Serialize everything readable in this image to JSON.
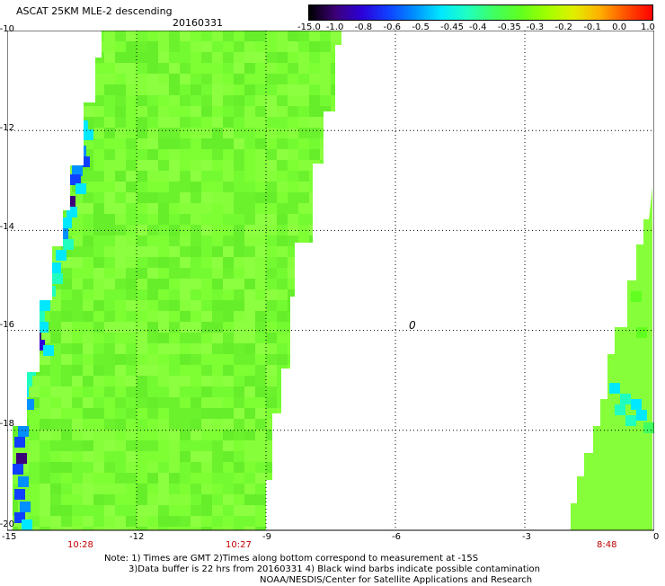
{
  "header": {
    "title": "ASCAT 25KM MLE-2 descending",
    "date": "20160331"
  },
  "colorbar": {
    "labels": [
      "-15.0",
      "-1.0",
      "-0.8",
      "-0.6",
      "-0.5",
      "-0.45",
      "-0.4",
      "-0.35",
      "-0.3",
      "-0.2",
      "-0.1",
      "0.0",
      "1.0"
    ],
    "colors": [
      "#000000",
      "#3c0078",
      "#2c00d8",
      "#1040ff",
      "#0090ff",
      "#00e8ff",
      "#20ffc0",
      "#40ff60",
      "#60ff20",
      "#a0ff00",
      "#e0f000",
      "#ffb000",
      "#ff5000",
      "#ff0000"
    ]
  },
  "map": {
    "lat_labels": [
      "-10",
      "-12",
      "-14",
      "-16",
      "-18",
      "-20"
    ],
    "lon_labels": [
      "-15",
      "-12",
      "-9",
      "-6",
      "-3",
      "0"
    ],
    "lat_range": [
      -10,
      -20
    ],
    "lon_range": [
      -15,
      0
    ],
    "swath_color": "#7dff33",
    "grid": "dotted"
  },
  "times": {
    "t1": "10:28",
    "t2": "10:27",
    "t3": "8:48"
  },
  "marker": "0",
  "notes": {
    "line1": "Note: 1) Times are GMT 2)Times along bottom correspond to measurement at -15S",
    "line2": "3)Data buffer is 22 hrs from 20160331 4) Black wind barbs indicate possible contamination",
    "line3": "NOAA/NESDIS/Center for Satellite Applications and Research"
  }
}
